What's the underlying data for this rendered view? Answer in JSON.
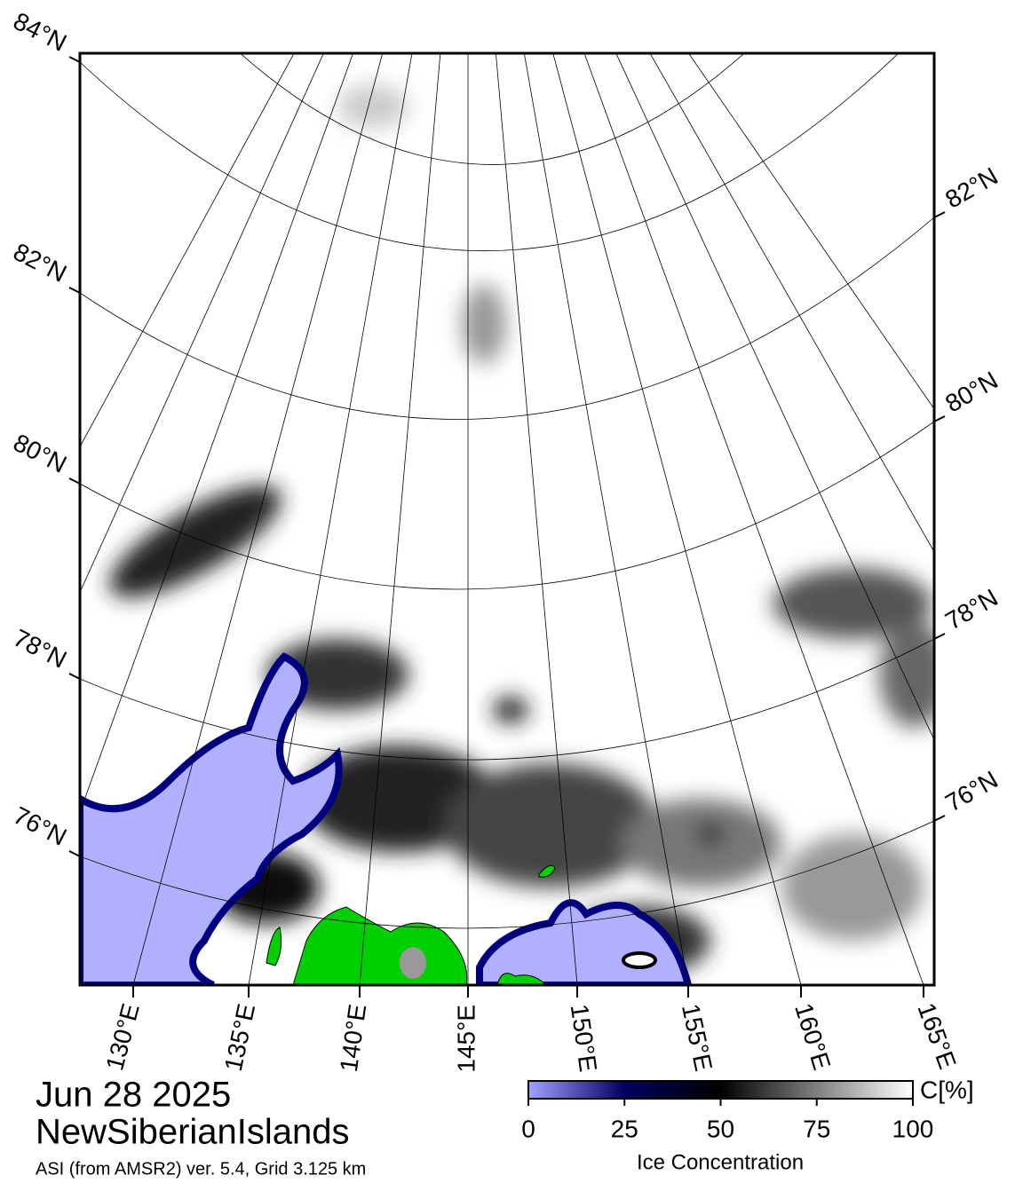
{
  "map": {
    "lat_labels_left": [
      "84°N",
      "82°N",
      "80°N",
      "78°N",
      "76°N"
    ],
    "lat_labels_right": [
      "82°N",
      "80°N",
      "78°N",
      "76°N"
    ],
    "lon_labels": [
      "130°E",
      "135°E",
      "140°E",
      "145°E",
      "150°E",
      "155°E",
      "160°E",
      "165°E"
    ]
  },
  "caption": {
    "date": "Jun 28 2025",
    "region": "NewSiberianIslands",
    "source": "ASI (from AMSR2) ver. 5.4,  Grid 3.125 km"
  },
  "colorbar": {
    "unit": "C[%]",
    "label": "Ice Concentration",
    "range": [
      0,
      100
    ],
    "ticks": [
      0,
      25,
      50,
      75,
      100
    ]
  }
}
